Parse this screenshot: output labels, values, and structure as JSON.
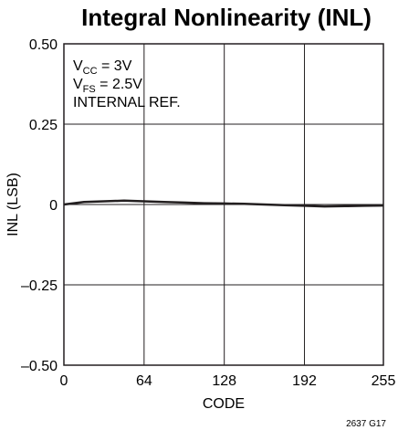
{
  "chart_data": {
    "type": "line",
    "title": "Integral Nonlinearity (INL)",
    "xlabel": "CODE",
    "ylabel": "INL (LSB)",
    "xlim": [
      0,
      255
    ],
    "ylim": [
      -0.5,
      0.5
    ],
    "x_ticks": [
      0,
      64,
      128,
      192,
      255
    ],
    "x_tick_labels": [
      "0",
      "64",
      "128",
      "192",
      "255"
    ],
    "y_ticks": [
      0.5,
      0.25,
      0,
      -0.25,
      -0.5
    ],
    "y_tick_labels": [
      "0.50",
      "0.25",
      "0",
      "–0.25",
      "–0.50"
    ],
    "grid": true,
    "annotations": [
      {
        "main": "V",
        "sub": "CC",
        "rest": " = 3V"
      },
      {
        "main": "V",
        "sub": "FS",
        "rest": " = 2.5V"
      },
      {
        "main": "INTERNAL REF.",
        "sub": "",
        "rest": ""
      }
    ],
    "series": [
      {
        "color": "#231f20",
        "x": [
          0,
          16,
          32,
          48,
          64,
          80,
          96,
          112,
          128,
          144,
          160,
          176,
          192,
          208,
          224,
          240,
          255
        ],
        "y": [
          0.0,
          0.008,
          0.01,
          0.012,
          0.01,
          0.008,
          0.006,
          0.004,
          0.003,
          0.002,
          0.0,
          -0.002,
          -0.004,
          -0.006,
          -0.005,
          -0.004,
          -0.003
        ]
      }
    ]
  },
  "figure_id": "2637 G17"
}
